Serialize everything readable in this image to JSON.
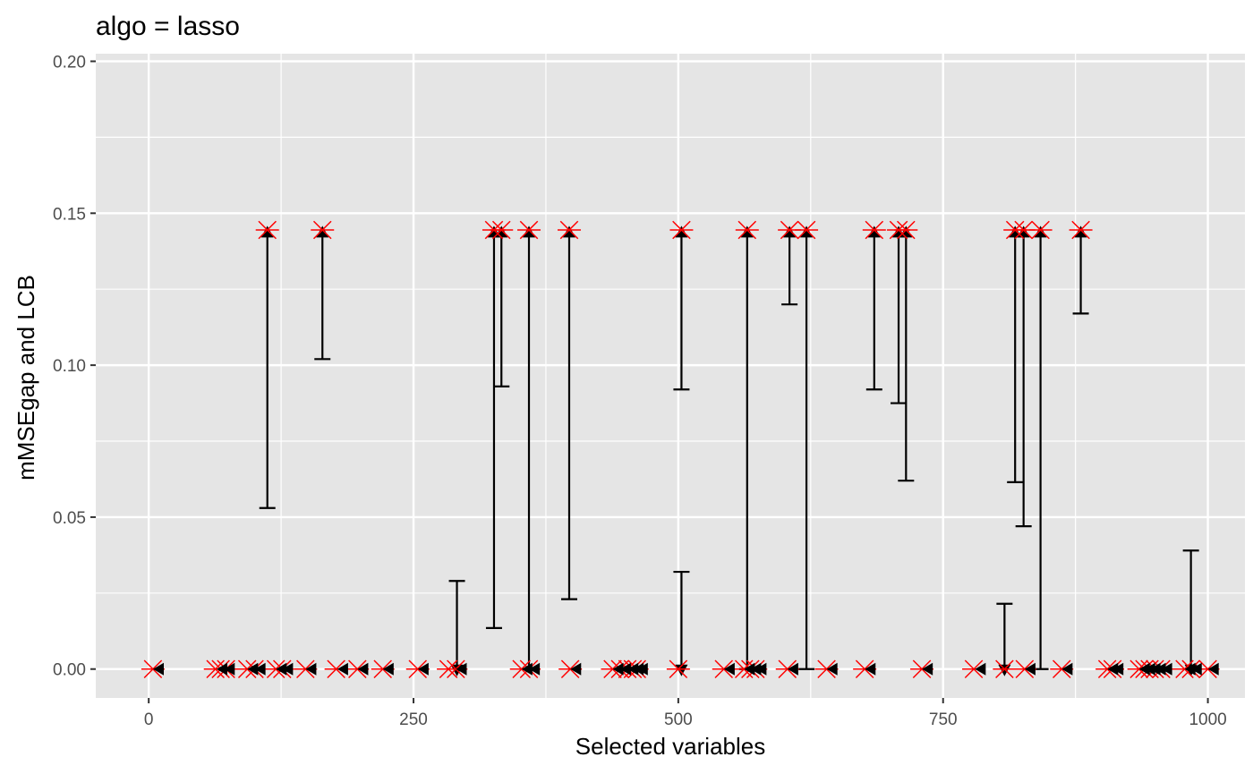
{
  "chart_data": {
    "type": "scatter",
    "title": "algo = lasso",
    "xlabel": "Selected variables",
    "ylabel": "mMSEgap and LCB",
    "xlim": [
      -50,
      1035
    ],
    "ylim": [
      -0.0095,
      0.2025
    ],
    "x_ticks": [
      0,
      250,
      500,
      750,
      1000
    ],
    "x_tick_labels": [
      "0",
      "250",
      "500",
      "750",
      "1000"
    ],
    "y_ticks": [
      0.0,
      0.05,
      0.1,
      0.15,
      0.2
    ],
    "y_tick_labels": [
      "0.00",
      "0.05",
      "0.10",
      "0.15",
      "0.20"
    ],
    "grid": true,
    "background": "#e5e5e5",
    "grid_color": "#ffffff",
    "star_color": "#ff0000",
    "interval_color": "#000000",
    "star_y_high": 0.1445,
    "star_y_low": 0.0,
    "stars_high_x": [
      112,
      164,
      326,
      333,
      359,
      397,
      503,
      565,
      605,
      621,
      685,
      708,
      715,
      818,
      826,
      842,
      880
    ],
    "stars_low_x": [
      4,
      63,
      68,
      73,
      93,
      100,
      120,
      126,
      148,
      177,
      197,
      221,
      254,
      283,
      290,
      352,
      359,
      398,
      438,
      445,
      452,
      457,
      461,
      500,
      543,
      562,
      568,
      573,
      603,
      640,
      676,
      730,
      779,
      808,
      827,
      862,
      905,
      910,
      935,
      940,
      945,
      950,
      956,
      978,
      984,
      1000
    ],
    "intervals": [
      {
        "x": 112,
        "mmse": 0.1435,
        "lcb": 0.053
      },
      {
        "x": 164,
        "mmse": 0.1435,
        "lcb": 0.102
      },
      {
        "x": 291,
        "mmse": 0.0,
        "lcb": 0.029
      },
      {
        "x": 326,
        "mmse": 0.1435,
        "lcb": 0.0135
      },
      {
        "x": 333,
        "mmse": 0.1435,
        "lcb": 0.093
      },
      {
        "x": 359,
        "mmse": 0.1435,
        "lcb": 0.0
      },
      {
        "x": 397,
        "mmse": 0.1435,
        "lcb": 0.023
      },
      {
        "x": 503,
        "mmse": 0.1435,
        "lcb": 0.092
      },
      {
        "x": 503,
        "mmse": 0.0,
        "lcb": 0.032
      },
      {
        "x": 565,
        "mmse": 0.1435,
        "lcb": 0.0
      },
      {
        "x": 605,
        "mmse": 0.1435,
        "lcb": 0.12
      },
      {
        "x": 621,
        "mmse": 0.1435,
        "lcb": 0.0
      },
      {
        "x": 685,
        "mmse": 0.1435,
        "lcb": 0.092
      },
      {
        "x": 708,
        "mmse": 0.1435,
        "lcb": 0.0875
      },
      {
        "x": 715,
        "mmse": 0.1435,
        "lcb": 0.062
      },
      {
        "x": 808,
        "mmse": 0.0,
        "lcb": 0.0215
      },
      {
        "x": 818,
        "mmse": 0.1435,
        "lcb": 0.0615
      },
      {
        "x": 826,
        "mmse": 0.1435,
        "lcb": 0.047
      },
      {
        "x": 842,
        "mmse": 0.1435,
        "lcb": 0.0
      },
      {
        "x": 880,
        "mmse": 0.1435,
        "lcb": 0.117
      },
      {
        "x": 984,
        "mmse": 0.0,
        "lcb": 0.039
      }
    ],
    "left_markers_x": [
      10,
      70,
      77,
      99,
      106,
      126,
      132,
      154,
      184,
      203,
      227,
      260,
      296,
      358,
      365,
      404,
      444,
      451,
      458,
      463,
      467,
      549,
      568,
      574,
      579,
      609,
      646,
      682,
      736,
      786,
      833,
      868,
      911,
      916,
      941,
      946,
      951,
      956,
      962,
      984,
      990,
      1006
    ]
  }
}
